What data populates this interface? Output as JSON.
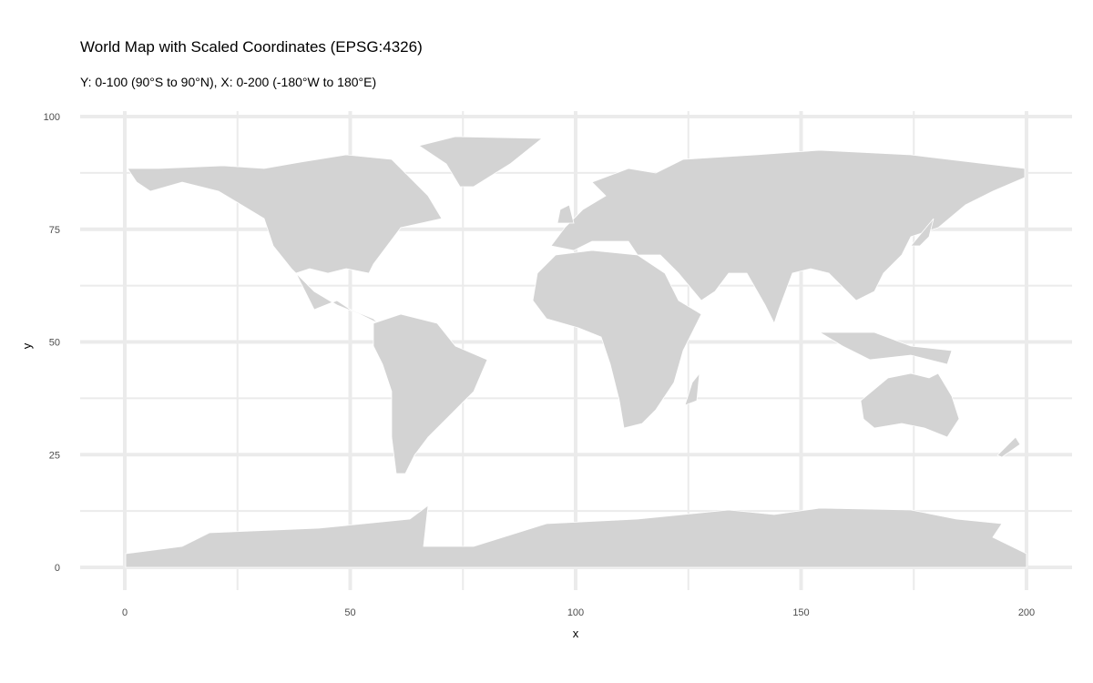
{
  "title": "World Map with Scaled Coordinates (EPSG:4326)",
  "subtitle": "Y: 0-100 (90°S to 90°N), X: 0-200 (-180°W to 180°E)",
  "x_axis": {
    "label": "x",
    "ticks": [
      "0",
      "50",
      "100",
      "150",
      "200"
    ],
    "range": [
      0,
      200
    ]
  },
  "y_axis": {
    "label": "y",
    "ticks": [
      "0",
      "25",
      "50",
      "75",
      "100"
    ],
    "range": [
      0,
      100
    ]
  },
  "colors": {
    "land": "#d3d3d3",
    "borders": "#ffffff",
    "grid": "#ebebeb",
    "background": "#ffffff"
  }
}
